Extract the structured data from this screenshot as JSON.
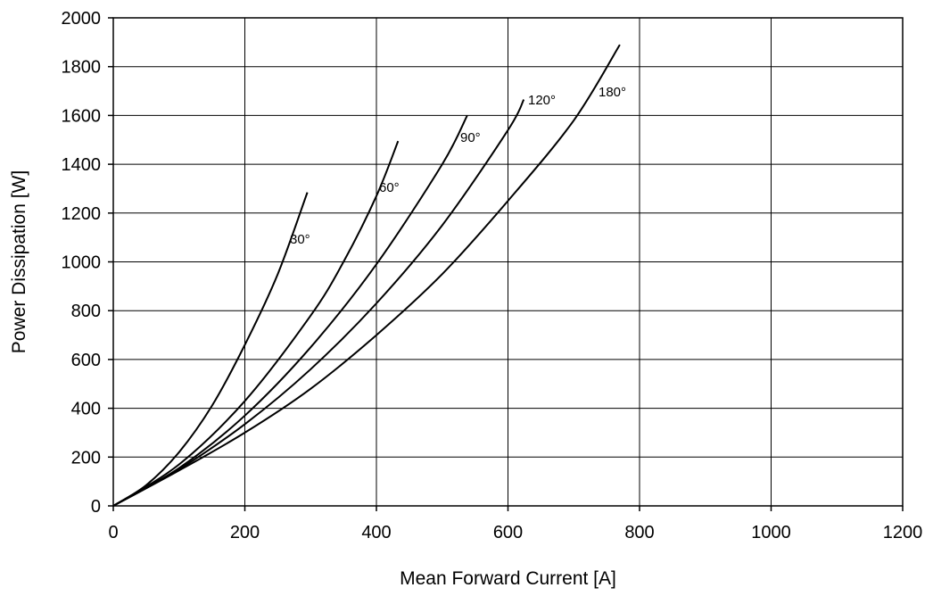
{
  "chart_data": {
    "type": "line",
    "xlabel": "Mean Forward Current [A]",
    "ylabel": "Power Dissipation [W]",
    "xlim": [
      0,
      1200
    ],
    "ylim": [
      0,
      2000
    ],
    "xticks": [
      0,
      200,
      400,
      600,
      800,
      1000,
      1200
    ],
    "yticks": [
      0,
      200,
      400,
      600,
      800,
      1000,
      1200,
      1400,
      1600,
      1800,
      2000
    ],
    "grid": true,
    "series": [
      {
        "name": "30°",
        "x": [
          0,
          50,
          100,
          150,
          200,
          250,
          295
        ],
        "y": [
          0,
          85,
          220,
          410,
          660,
          950,
          1285
        ]
      },
      {
        "name": "60°",
        "x": [
          0,
          100,
          200,
          300,
          350,
          400,
          433
        ],
        "y": [
          0,
          170,
          430,
          780,
          1000,
          1270,
          1495
        ]
      },
      {
        "name": "90°",
        "x": [
          0,
          100,
          200,
          300,
          400,
          500,
          538
        ],
        "y": [
          0,
          155,
          370,
          650,
          990,
          1400,
          1600
        ]
      },
      {
        "name": "120°",
        "x": [
          0,
          100,
          200,
          300,
          400,
          500,
          600,
          624
        ],
        "y": [
          0,
          150,
          335,
          560,
          830,
          1150,
          1540,
          1665
        ]
      },
      {
        "name": "180°",
        "x": [
          0,
          100,
          200,
          300,
          400,
          500,
          600,
          700,
          770
        ],
        "y": [
          0,
          145,
          300,
          480,
          700,
          950,
          1250,
          1580,
          1890
        ]
      }
    ]
  }
}
